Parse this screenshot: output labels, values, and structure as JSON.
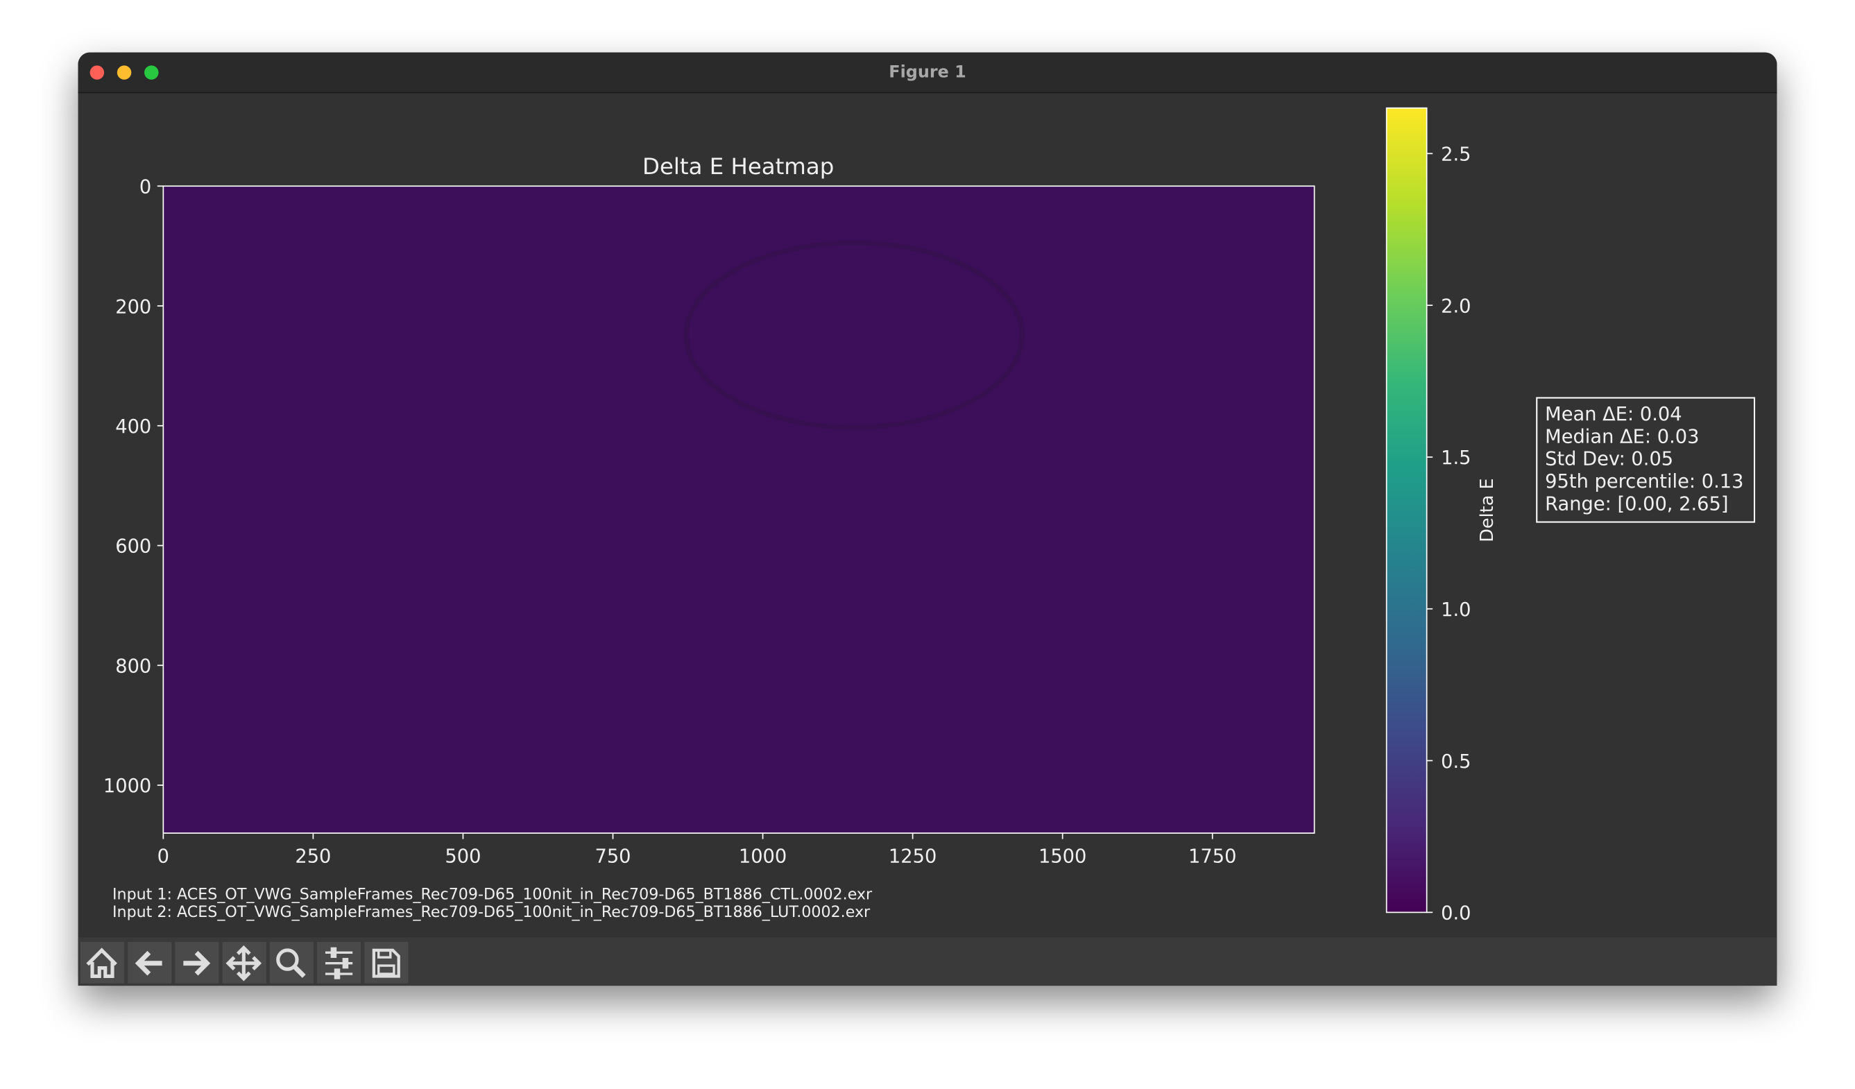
{
  "window": {
    "title": "Figure 1"
  },
  "chart_data": {
    "type": "heatmap",
    "title": "Delta E Heatmap",
    "xlim": [
      0,
      1920
    ],
    "ylim": [
      1080,
      0
    ],
    "xticks": [
      0,
      250,
      500,
      750,
      1000,
      1250,
      1500,
      1750
    ],
    "yticks": [
      0,
      200,
      400,
      600,
      800,
      1000
    ],
    "colorbar": {
      "label": "Delta E",
      "lim": [
        0,
        2.65
      ],
      "ticks": [
        {
          "value": 0,
          "label": "0.0"
        },
        {
          "value": 0.5,
          "label": "0.5"
        },
        {
          "value": 1,
          "label": "1.0"
        },
        {
          "value": 1.5,
          "label": "1.5"
        },
        {
          "value": 2,
          "label": "2.0"
        },
        {
          "value": 2.5,
          "label": "2.5"
        }
      ]
    }
  },
  "stats": [
    "Mean ΔE: 0.04",
    "Median ΔE: 0.03",
    "Std Dev: 0.05",
    "95th percentile: 0.13",
    "Range: [0.00, 2.65]"
  ],
  "footer": [
    "Input 1: ACES_OT_VWG_SampleFrames_Rec709-D65_100nit_in_Rec709-D65_BT1886_CTL.0002.exr",
    "Input 2: ACES_OT_VWG_SampleFrames_Rec709-D65_100nit_in_Rec709-D65_BT1886_LUT.0002.exr"
  ]
}
